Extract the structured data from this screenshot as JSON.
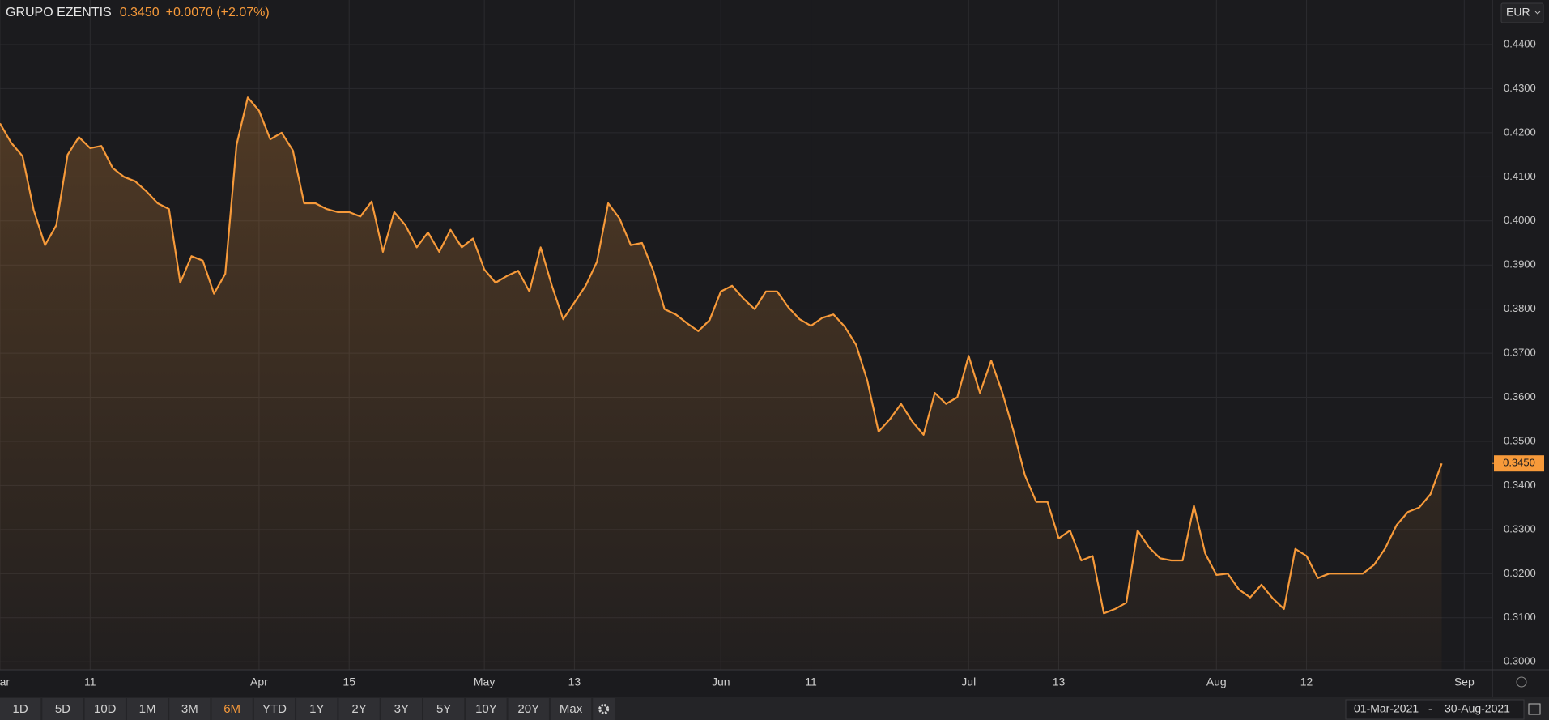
{
  "header": {
    "name": "GRUPO EZENTIS",
    "price": "0.3450",
    "change": "+0.0070 (+2.07%)"
  },
  "currency": "EUR",
  "chart_data": {
    "type": "area",
    "color": "#f79a3a",
    "grid": true,
    "x": [
      "2021-03-01",
      "2021-03-02",
      "2021-03-03",
      "2021-03-04",
      "2021-03-05",
      "2021-03-08",
      "2021-03-09",
      "2021-03-10",
      "2021-03-11",
      "2021-03-12",
      "2021-03-15",
      "2021-03-16",
      "2021-03-17",
      "2021-03-18",
      "2021-03-19",
      "2021-03-22",
      "2021-03-23",
      "2021-03-24",
      "2021-03-25",
      "2021-03-26",
      "2021-03-29",
      "2021-03-30",
      "2021-03-31",
      "2021-04-01",
      "2021-04-06",
      "2021-04-07",
      "2021-04-08",
      "2021-04-09",
      "2021-04-12",
      "2021-04-13",
      "2021-04-14",
      "2021-04-15",
      "2021-04-16",
      "2021-04-19",
      "2021-04-20",
      "2021-04-21",
      "2021-04-22",
      "2021-04-23",
      "2021-04-26",
      "2021-04-27",
      "2021-04-28",
      "2021-04-29",
      "2021-04-30",
      "2021-05-03",
      "2021-05-04",
      "2021-05-05",
      "2021-05-06",
      "2021-05-07",
      "2021-05-10",
      "2021-05-11",
      "2021-05-12",
      "2021-05-13",
      "2021-05-14",
      "2021-05-17",
      "2021-05-18",
      "2021-05-19",
      "2021-05-20",
      "2021-05-21",
      "2021-05-24",
      "2021-05-25",
      "2021-05-26",
      "2021-05-27",
      "2021-05-28",
      "2021-05-31",
      "2021-06-01",
      "2021-06-02",
      "2021-06-03",
      "2021-06-04",
      "2021-06-07",
      "2021-06-08",
      "2021-06-09",
      "2021-06-10",
      "2021-06-11",
      "2021-06-14",
      "2021-06-15",
      "2021-06-16",
      "2021-06-17",
      "2021-06-18",
      "2021-06-21",
      "2021-06-22",
      "2021-06-23",
      "2021-06-24",
      "2021-06-25",
      "2021-06-28",
      "2021-06-29",
      "2021-06-30",
      "2021-07-01",
      "2021-07-02",
      "2021-07-05",
      "2021-07-06",
      "2021-07-07",
      "2021-07-08",
      "2021-07-09",
      "2021-07-12",
      "2021-07-13",
      "2021-07-14",
      "2021-07-15",
      "2021-07-16",
      "2021-07-19",
      "2021-07-20",
      "2021-07-21",
      "2021-07-22",
      "2021-07-23",
      "2021-07-26",
      "2021-07-27",
      "2021-07-28",
      "2021-07-29",
      "2021-07-30",
      "2021-08-02",
      "2021-08-03",
      "2021-08-04",
      "2021-08-05",
      "2021-08-06",
      "2021-08-09",
      "2021-08-10",
      "2021-08-11",
      "2021-08-12",
      "2021-08-13",
      "2021-08-16",
      "2021-08-17",
      "2021-08-18",
      "2021-08-19",
      "2021-08-20",
      "2021-08-23",
      "2021-08-24",
      "2021-08-25",
      "2021-08-26",
      "2021-08-27",
      "2021-08-30"
    ],
    "values": [
      0.4221,
      0.4177,
      0.4147,
      0.4024,
      0.3945,
      0.399,
      0.415,
      0.419,
      0.4165,
      0.417,
      0.412,
      0.41,
      0.409,
      0.4067,
      0.404,
      0.4027,
      0.386,
      0.392,
      0.391,
      0.3835,
      0.388,
      0.4172,
      0.428,
      0.425,
      0.4185,
      0.42,
      0.416,
      0.404,
      0.404,
      0.4027,
      0.402,
      0.402,
      0.401,
      0.4044,
      0.393,
      0.402,
      0.399,
      0.394,
      0.3974,
      0.393,
      0.398,
      0.394,
      0.396,
      0.389,
      0.386,
      0.3875,
      0.3887,
      0.384,
      0.394,
      0.3853,
      0.3777,
      0.3815,
      0.3853,
      0.3907,
      0.404,
      0.4006,
      0.3945,
      0.395,
      0.3887,
      0.38,
      0.3788,
      0.3768,
      0.375,
      0.3775,
      0.384,
      0.3853,
      0.3824,
      0.38,
      0.384,
      0.384,
      0.3804,
      0.3777,
      0.3762,
      0.378,
      0.3788,
      0.376,
      0.3719,
      0.3638,
      0.3522,
      0.355,
      0.3585,
      0.3545,
      0.3515,
      0.361,
      0.3585,
      0.36,
      0.3694,
      0.361,
      0.3683,
      0.361,
      0.3522,
      0.3423,
      0.3363,
      0.3363,
      0.328,
      0.3298,
      0.323,
      0.324,
      0.311,
      0.312,
      0.3134,
      0.3298,
      0.326,
      0.3235,
      0.323,
      0.323,
      0.3354,
      0.3246,
      0.3197,
      0.32,
      0.3164,
      0.3146,
      0.3175,
      0.3144,
      0.312,
      0.3256,
      0.324,
      0.319,
      0.32,
      0.32,
      0.32,
      0.32,
      0.322,
      0.3258,
      0.331,
      0.334,
      0.335,
      0.338,
      0.345
    ],
    "ylim": [
      0.2982,
      0.4501
    ],
    "yticks": [
      {
        "value": 0.3,
        "label": "0.3000"
      },
      {
        "value": 0.31,
        "label": "0.3100"
      },
      {
        "value": 0.32,
        "label": "0.3200"
      },
      {
        "value": 0.33,
        "label": "0.3300"
      },
      {
        "value": 0.34,
        "label": "0.3400"
      },
      {
        "value": 0.35,
        "label": "0.3500"
      },
      {
        "value": 0.36,
        "label": "0.3600"
      },
      {
        "value": 0.37,
        "label": "0.3700"
      },
      {
        "value": 0.38,
        "label": "0.3800"
      },
      {
        "value": 0.39,
        "label": "0.3900"
      },
      {
        "value": 0.4,
        "label": "0.4000"
      },
      {
        "value": 0.41,
        "label": "0.4100"
      },
      {
        "value": 0.42,
        "label": "0.4200"
      },
      {
        "value": 0.43,
        "label": "0.4300"
      },
      {
        "value": 0.44,
        "label": "0.4400"
      }
    ],
    "xticks": [
      {
        "value": "2021-03-01",
        "label": "Mar"
      },
      {
        "value": "2021-03-11",
        "label": "11"
      },
      {
        "value": "2021-04-01",
        "label": "Apr"
      },
      {
        "value": "2021-04-15",
        "label": "15"
      },
      {
        "value": "2021-05-03",
        "label": "May"
      },
      {
        "value": "2021-05-13",
        "label": "13"
      },
      {
        "value": "2021-06-01",
        "label": "Jun"
      },
      {
        "value": "2021-06-11",
        "label": "11"
      },
      {
        "value": "2021-07-01",
        "label": "Jul"
      },
      {
        "value": "2021-07-13",
        "label": "13"
      },
      {
        "value": "2021-08-02",
        "label": "Aug"
      },
      {
        "value": "2021-08-12",
        "label": "12"
      },
      {
        "value": "2021-09-01",
        "label": "Sep"
      }
    ]
  },
  "range_buttons": [
    "1D",
    "5D",
    "10D",
    "1M",
    "3M",
    "6M",
    "YTD",
    "1Y",
    "2Y",
    "3Y",
    "5Y",
    "10Y",
    "20Y",
    "Max"
  ],
  "selected_range": "6M",
  "date_from": "01-Mar-2021",
  "date_to": "30-Aug-2021"
}
